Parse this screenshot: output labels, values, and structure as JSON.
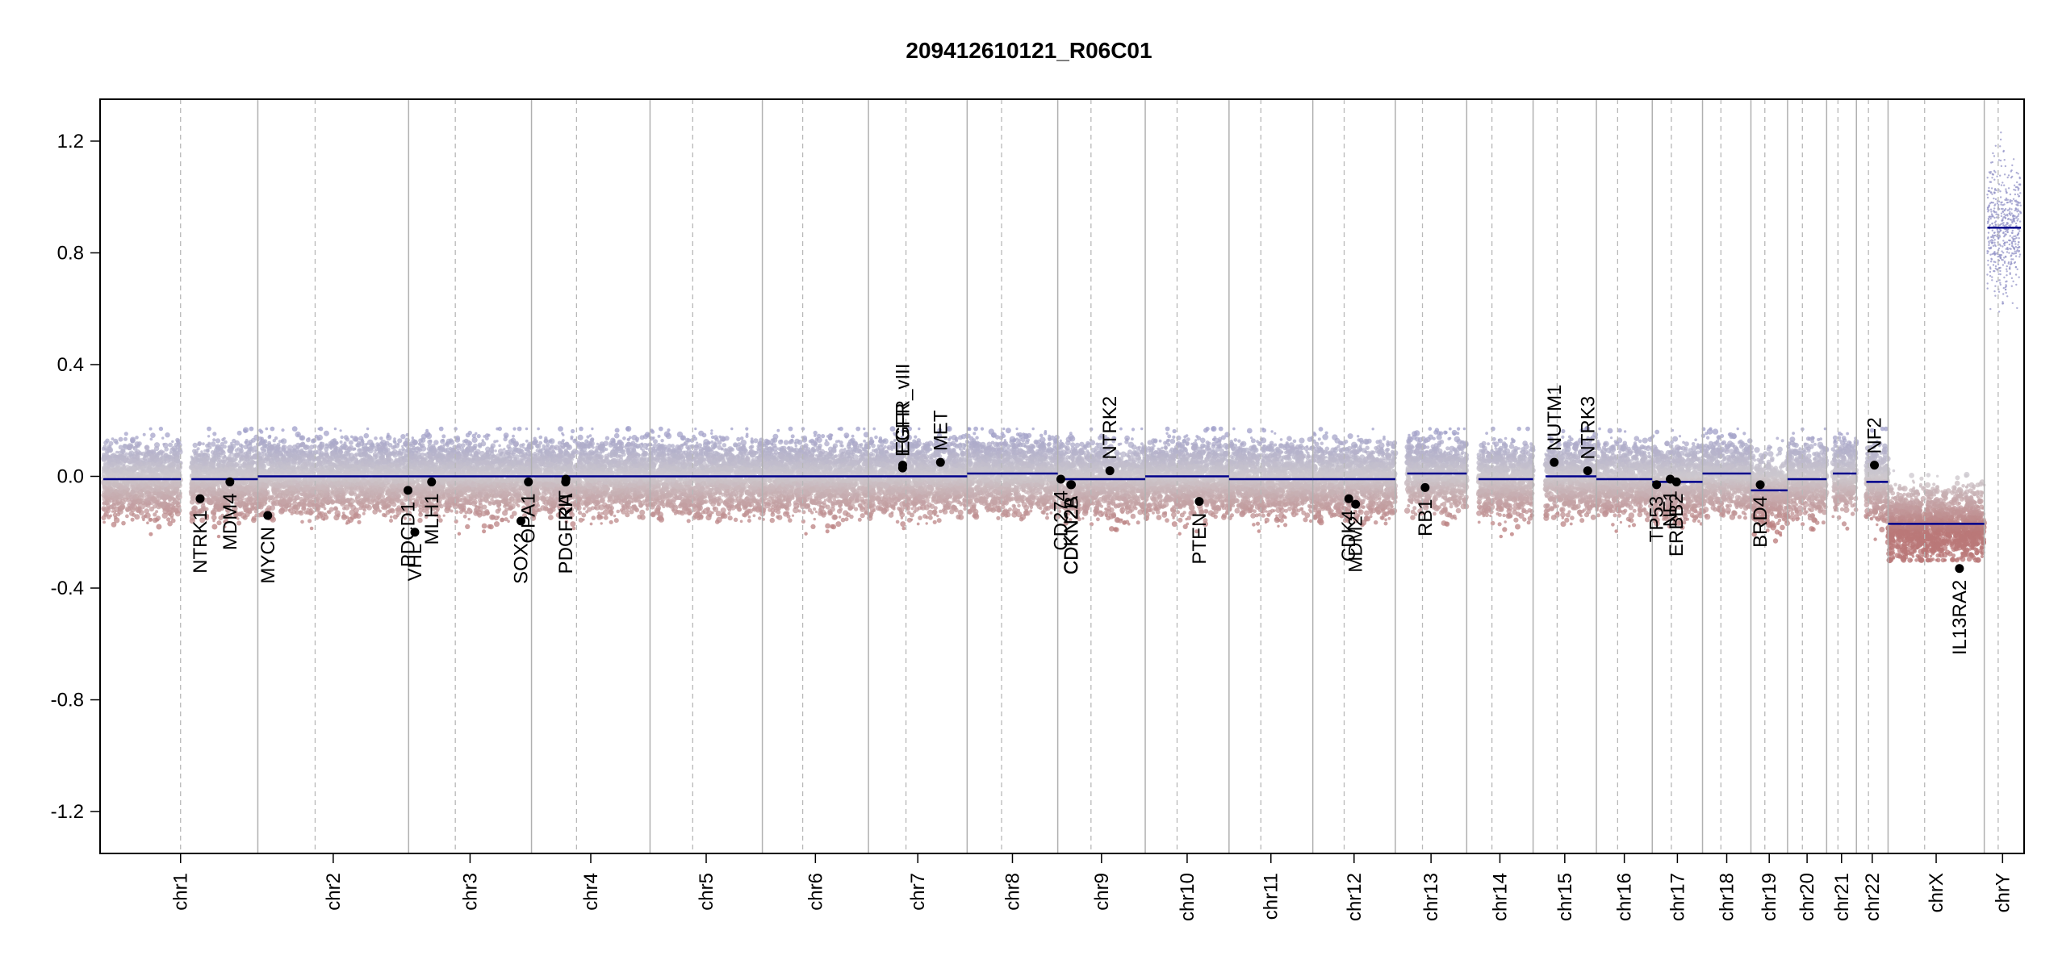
{
  "chart_data": {
    "type": "scatter",
    "title": "209412610121_R06C01",
    "xlabel": "",
    "ylabel": "",
    "ylim": [
      -1.35,
      1.35
    ],
    "yticks": [
      1.2,
      0.8,
      0.4,
      0.0,
      -0.4,
      -0.8,
      -1.2
    ],
    "ytick_labels": [
      "1.2",
      "0.8",
      "0.4",
      "0.0",
      "-0.4",
      "-0.8",
      "-1.2"
    ],
    "chromosomes": [
      {
        "name": "chr1",
        "size": 249
      },
      {
        "name": "chr2",
        "size": 243
      },
      {
        "name": "chr3",
        "size": 198
      },
      {
        "name": "chr4",
        "size": 191
      },
      {
        "name": "chr5",
        "size": 181
      },
      {
        "name": "chr6",
        "size": 171
      },
      {
        "name": "chr7",
        "size": 159
      },
      {
        "name": "chr8",
        "size": 146
      },
      {
        "name": "chr9",
        "size": 141
      },
      {
        "name": "chr10",
        "size": 135
      },
      {
        "name": "chr11",
        "size": 135
      },
      {
        "name": "chr12",
        "size": 133
      },
      {
        "name": "chr13",
        "size": 115
      },
      {
        "name": "chr14",
        "size": 107
      },
      {
        "name": "chr15",
        "size": 102
      },
      {
        "name": "chr16",
        "size": 90
      },
      {
        "name": "chr17",
        "size": 81
      },
      {
        "name": "chr18",
        "size": 78
      },
      {
        "name": "chr19",
        "size": 59
      },
      {
        "name": "chr20",
        "size": 63
      },
      {
        "name": "chr21",
        "size": 48
      },
      {
        "name": "chr22",
        "size": 51
      },
      {
        "name": "chrX",
        "size": 155
      },
      {
        "name": "chrY",
        "size": 59
      }
    ],
    "segments": [
      {
        "chr": "chr1",
        "start": 0,
        "end": 125,
        "value": -0.01
      },
      {
        "chr": "chr1",
        "start": 142,
        "end": 249,
        "value": -0.01
      },
      {
        "chr": "chr2",
        "start": 0,
        "end": 243,
        "value": 0.0
      },
      {
        "chr": "chr3",
        "start": 0,
        "end": 198,
        "value": 0.0
      },
      {
        "chr": "chr4",
        "start": 0,
        "end": 191,
        "value": 0.0
      },
      {
        "chr": "chr5",
        "start": 0,
        "end": 181,
        "value": 0.0
      },
      {
        "chr": "chr6",
        "start": 0,
        "end": 171,
        "value": 0.0
      },
      {
        "chr": "chr7",
        "start": 0,
        "end": 159,
        "value": 0.0
      },
      {
        "chr": "chr8",
        "start": 0,
        "end": 146,
        "value": 0.01
      },
      {
        "chr": "chr9",
        "start": 0,
        "end": 141,
        "value": -0.01
      },
      {
        "chr": "chr10",
        "start": 0,
        "end": 135,
        "value": 0.0
      },
      {
        "chr": "chr11",
        "start": 0,
        "end": 135,
        "value": -0.01
      },
      {
        "chr": "chr12",
        "start": 0,
        "end": 133,
        "value": -0.01
      },
      {
        "chr": "chr13",
        "start": 19,
        "end": 115,
        "value": 0.01
      },
      {
        "chr": "chr14",
        "start": 19,
        "end": 107,
        "value": -0.01
      },
      {
        "chr": "chr15",
        "start": 20,
        "end": 102,
        "value": 0.0
      },
      {
        "chr": "chr16",
        "start": 0,
        "end": 90,
        "value": -0.01
      },
      {
        "chr": "chr17",
        "start": 0,
        "end": 81,
        "value": -0.02
      },
      {
        "chr": "chr18",
        "start": 0,
        "end": 78,
        "value": 0.01
      },
      {
        "chr": "chr19",
        "start": 0,
        "end": 59,
        "value": -0.05
      },
      {
        "chr": "chr20",
        "start": 0,
        "end": 63,
        "value": -0.01
      },
      {
        "chr": "chr21",
        "start": 10,
        "end": 48,
        "value": 0.01
      },
      {
        "chr": "chr22",
        "start": 16,
        "end": 51,
        "value": -0.02
      },
      {
        "chr": "chrX",
        "start": 0,
        "end": 155,
        "value": -0.17
      },
      {
        "chr": "chrY",
        "start": 5,
        "end": 59,
        "value": 0.89
      }
    ],
    "genes": [
      {
        "name": "NTRK1",
        "chr": "chr1",
        "pos": 156,
        "value": -0.08
      },
      {
        "name": "MDM4",
        "chr": "chr1",
        "pos": 204,
        "value": -0.02
      },
      {
        "name": "MYCN",
        "chr": "chr2",
        "pos": 16,
        "value": -0.14
      },
      {
        "name": "VHL",
        "chr": "chr3",
        "pos": 10,
        "value": -0.2
      },
      {
        "name": "PDCD1",
        "chr": "chr2",
        "pos": 242,
        "value": -0.05
      },
      {
        "name": "MLH1",
        "chr": "chr3",
        "pos": 37,
        "value": -0.02
      },
      {
        "name": "SOX2",
        "chr": "chr3",
        "pos": 181,
        "value": -0.16
      },
      {
        "name": "OPA1",
        "chr": "chr3",
        "pos": 193,
        "value": -0.02
      },
      {
        "name": "PDGFRA",
        "chr": "chr4",
        "pos": 55,
        "value": -0.02
      },
      {
        "name": "KIT",
        "chr": "chr4",
        "pos": 55.5,
        "value": -0.01
      },
      {
        "name": "EGFR",
        "chr": "chr7",
        "pos": 55,
        "value": 0.03
      },
      {
        "name": "EGFR_vIII",
        "chr": "chr7",
        "pos": 55.2,
        "value": 0.04
      },
      {
        "name": "MET",
        "chr": "chr7",
        "pos": 116,
        "value": 0.05
      },
      {
        "name": "CD274",
        "chr": "chr9",
        "pos": 5,
        "value": -0.01
      },
      {
        "name": "CDKN2A",
        "chr": "chr9",
        "pos": 21,
        "value": -0.03
      },
      {
        "name": "CDKN2B",
        "chr": "chr9",
        "pos": 22,
        "value": -0.03
      },
      {
        "name": "NTRK2",
        "chr": "chr9",
        "pos": 84,
        "value": 0.02
      },
      {
        "name": "PTEN",
        "chr": "chr10",
        "pos": 87,
        "value": -0.09
      },
      {
        "name": "CDK4",
        "chr": "chr12",
        "pos": 58,
        "value": -0.08
      },
      {
        "name": "MDM2",
        "chr": "chr12",
        "pos": 69,
        "value": -0.1
      },
      {
        "name": "RB1",
        "chr": "chr13",
        "pos": 48,
        "value": -0.04
      },
      {
        "name": "NUTM1",
        "chr": "chr15",
        "pos": 34,
        "value": 0.05
      },
      {
        "name": "NTRK3",
        "chr": "chr15",
        "pos": 88,
        "value": 0.02
      },
      {
        "name": "TP53",
        "chr": "chr17",
        "pos": 7,
        "value": -0.03
      },
      {
        "name": "NF1",
        "chr": "chr17",
        "pos": 29,
        "value": -0.01
      },
      {
        "name": "ERBB2",
        "chr": "chr17",
        "pos": 39,
        "value": -0.02
      },
      {
        "name": "BRD4",
        "chr": "chr19",
        "pos": 15,
        "value": -0.03
      },
      {
        "name": "NF2",
        "chr": "chr22",
        "pos": 29,
        "value": 0.04
      },
      {
        "name": "IL13RA2",
        "chr": "chrX",
        "pos": 115,
        "value": -0.33
      }
    ],
    "colors": {
      "point_gain": "#9a9ac8",
      "point_loss": "#b87a7a",
      "point_neutral": "#c8c8c8",
      "segment": "#00008b",
      "chr_border": "#b0b0b0",
      "centromere": "#b8b8b8",
      "gene_point": "#000000"
    },
    "grid": false,
    "legend": "none"
  }
}
